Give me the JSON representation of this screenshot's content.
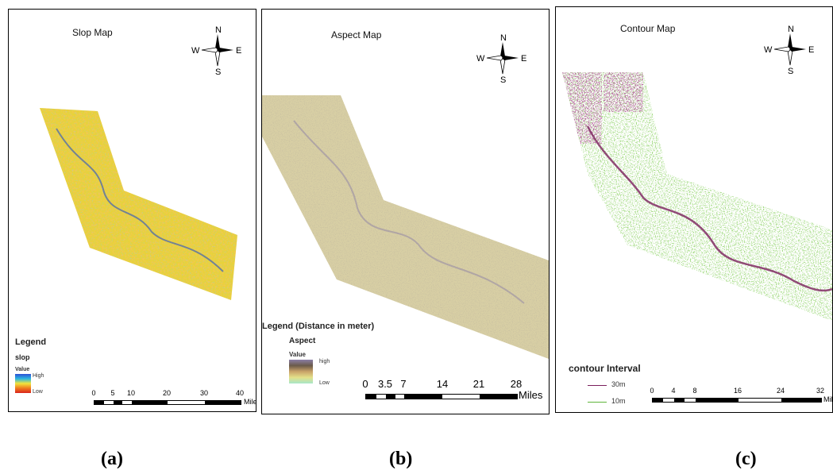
{
  "panels": [
    {
      "title": "Slop Map",
      "legend": {
        "heading": "Legend",
        "layer": "slop",
        "value_label": "Value",
        "high_label": "High",
        "low_label": "Low",
        "colors": [
          "#2c4fd6",
          "#2ab7e0",
          "#f2e43c",
          "#ef7b1e",
          "#d9221c"
        ]
      },
      "scale": {
        "ticks": [
          "0",
          "5",
          "10",
          "20",
          "30",
          "40"
        ],
        "unit": "Mile"
      },
      "caption": "(a)"
    },
    {
      "title": "Aspect Map",
      "legend": {
        "heading": "Legend (Distance in meter)",
        "layer": "Aspect",
        "value_label": "Value",
        "high_label": "high",
        "low_label": "Low",
        "colors": [
          "#8b7fa6",
          "#6a5a4a",
          "#c9a368",
          "#e3e08a",
          "#a7e6c8"
        ]
      },
      "scale": {
        "ticks": [
          "0",
          "3.5",
          "7",
          "14",
          "21",
          "28"
        ],
        "unit": "Miles"
      },
      "caption": "(b)"
    },
    {
      "title": "Contour Map",
      "legend": {
        "heading": "contour Interval",
        "items": [
          {
            "label": "30m",
            "color": "#7a1f5c"
          },
          {
            "label": "10m",
            "color": "#5fb53a"
          }
        ]
      },
      "scale": {
        "ticks": [
          "0",
          "4",
          "8",
          "16",
          "24",
          "32"
        ],
        "unit": "Mil"
      },
      "caption": "(c)"
    }
  ],
  "compass": {
    "n": "N",
    "s": "S",
    "e": "E",
    "w": "W"
  }
}
